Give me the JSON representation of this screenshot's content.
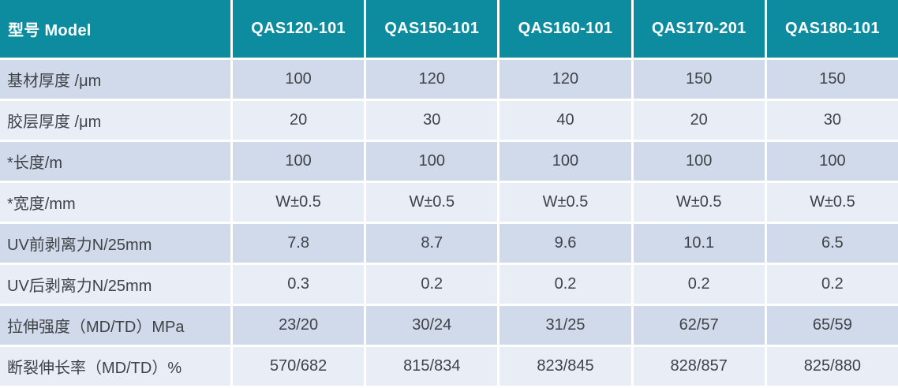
{
  "colors": {
    "header_bg": "#0d8ca0",
    "header_text": "#ffffff",
    "row_odd_bg": "#d1daea",
    "row_even_bg": "#e9edf6",
    "body_text": "#3e4347",
    "divider": "#ffffff"
  },
  "table": {
    "corner_label": "型号 Model",
    "columns": [
      "QAS120-101",
      "QAS150-101",
      "QAS160-101",
      "QAS170-201",
      "QAS180-101"
    ],
    "rows": [
      {
        "label": "基材厚度  /μm",
        "values": [
          "100",
          "120",
          "120",
          "150",
          "150"
        ]
      },
      {
        "label": "胶层厚度 /μm",
        "values": [
          "20",
          "30",
          "40",
          "20",
          "30"
        ]
      },
      {
        "label": "*长度/m",
        "values": [
          "100",
          "100",
          "100",
          "100",
          "100"
        ]
      },
      {
        "label": "*宽度/mm",
        "values": [
          "W±0.5",
          "W±0.5",
          "W±0.5",
          "W±0.5",
          "W±0.5"
        ]
      },
      {
        "label": "UV前剥离力N/25mm",
        "values": [
          "7.8",
          "8.7",
          "9.6",
          "10.1",
          "6.5"
        ]
      },
      {
        "label": "UV后剥离力N/25mm",
        "values": [
          "0.3",
          "0.2",
          "0.2",
          "0.2",
          "0.2"
        ]
      },
      {
        "label": "拉伸强度（MD/TD）MPa",
        "values": [
          "23/20",
          "30/24",
          "31/25",
          "62/57",
          "65/59"
        ]
      },
      {
        "label": "断裂伸长率（MD/TD）%",
        "values": [
          "570/682",
          "815/834",
          "823/845",
          "828/857",
          "825/880"
        ]
      }
    ]
  }
}
